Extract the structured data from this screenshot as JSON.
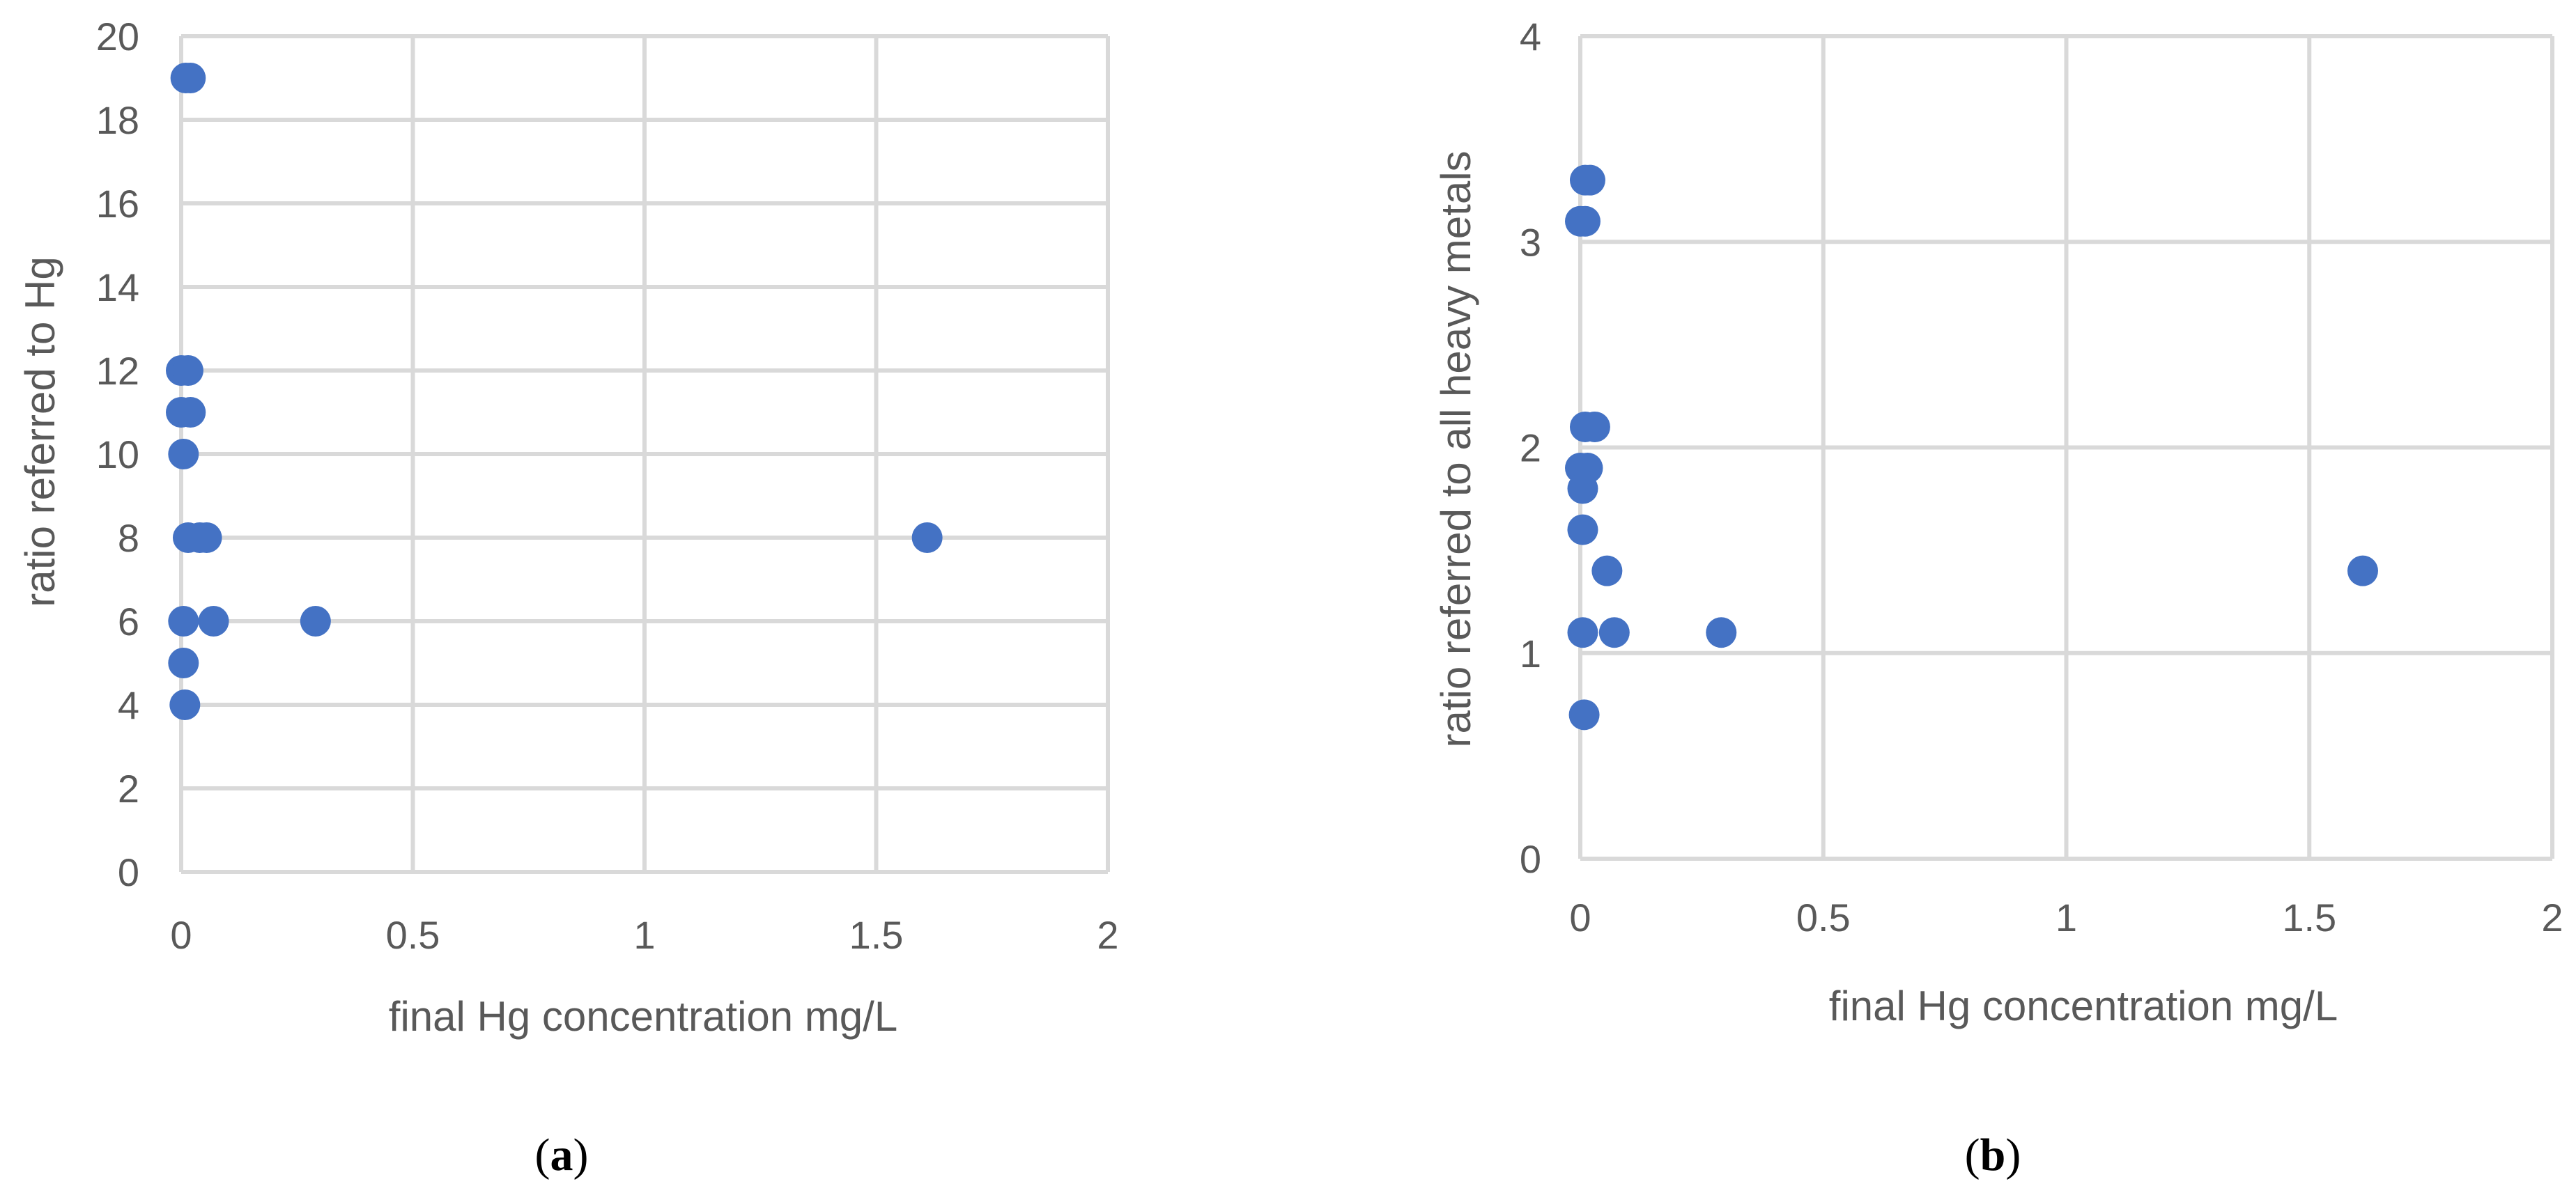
{
  "chart_data": [
    {
      "type": "scatter",
      "xlabel": "final Hg concentration mg/L",
      "ylabel": "ratio referred to Hg",
      "xlim": [
        0,
        2
      ],
      "ylim": [
        0,
        20
      ],
      "x_ticks": [
        "0",
        "0.5",
        "1",
        "1.5",
        "2"
      ],
      "y_ticks": [
        "0",
        "2",
        "4",
        "6",
        "8",
        "10",
        "12",
        "14",
        "16",
        "18",
        "20"
      ],
      "grid": true,
      "marker_color": "#4472C4",
      "caption_letter": "a",
      "points": [
        {
          "x": 0.01,
          "y": 19
        },
        {
          "x": 0.02,
          "y": 19
        },
        {
          "x": 0.0,
          "y": 12
        },
        {
          "x": 0.015,
          "y": 12
        },
        {
          "x": 0.0,
          "y": 11
        },
        {
          "x": 0.02,
          "y": 11
        },
        {
          "x": 0.005,
          "y": 10
        },
        {
          "x": 0.015,
          "y": 8
        },
        {
          "x": 0.04,
          "y": 8
        },
        {
          "x": 0.055,
          "y": 8
        },
        {
          "x": 0.005,
          "y": 6
        },
        {
          "x": 0.07,
          "y": 6
        },
        {
          "x": 0.29,
          "y": 6
        },
        {
          "x": 0.005,
          "y": 5
        },
        {
          "x": 0.008,
          "y": 4
        },
        {
          "x": 1.61,
          "y": 8
        }
      ]
    },
    {
      "type": "scatter",
      "xlabel": "final Hg concentration mg/L",
      "ylabel": "ratio referred to all heavy metals",
      "xlim": [
        0,
        2
      ],
      "ylim": [
        0,
        4
      ],
      "x_ticks": [
        "0",
        "0.5",
        "1",
        "1.5",
        "2"
      ],
      "y_ticks": [
        "0",
        "1",
        "2",
        "3",
        "4"
      ],
      "grid": true,
      "marker_color": "#4472C4",
      "caption_letter": "b",
      "points": [
        {
          "x": 0.01,
          "y": 3.3
        },
        {
          "x": 0.02,
          "y": 3.3
        },
        {
          "x": 0.0,
          "y": 3.1
        },
        {
          "x": 0.01,
          "y": 3.1
        },
        {
          "x": 0.01,
          "y": 2.1
        },
        {
          "x": 0.03,
          "y": 2.1
        },
        {
          "x": 0.0,
          "y": 1.9
        },
        {
          "x": 0.015,
          "y": 1.9
        },
        {
          "x": 0.005,
          "y": 1.8
        },
        {
          "x": 0.005,
          "y": 1.6
        },
        {
          "x": 0.055,
          "y": 1.4
        },
        {
          "x": 1.61,
          "y": 1.4
        },
        {
          "x": 0.005,
          "y": 1.1
        },
        {
          "x": 0.07,
          "y": 1.1
        },
        {
          "x": 0.29,
          "y": 1.1
        },
        {
          "x": 0.008,
          "y": 0.7
        }
      ]
    }
  ]
}
